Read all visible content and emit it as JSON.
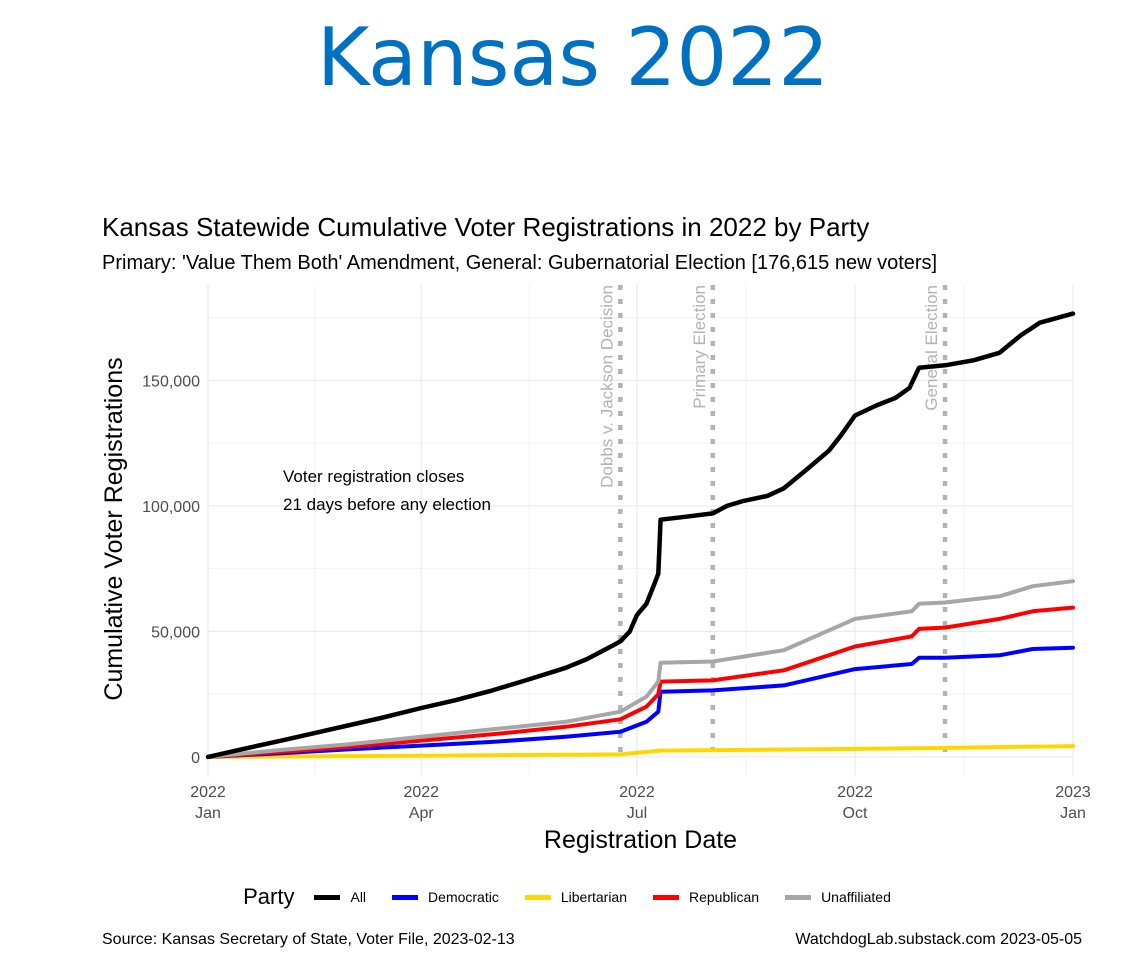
{
  "slide_title": "Kansas 2022",
  "source": "Source:  Kansas Secretary of State, Voter File, 2023-02-13",
  "credit": "WatchdogLab.substack.com 2023-05-05",
  "chart_data": {
    "type": "line",
    "title": "Kansas Statewide Cumulative Voter Registrations in 2022 by Party",
    "subtitle": "Primary: 'Value Them Both' Amendment, General: Gubernatorial Election [176,615 new voters]",
    "xlabel": "Registration Date",
    "ylabel": "Cumulative Voter Registrations",
    "xlim": [
      "2022-01-01",
      "2023-01-01"
    ],
    "ylim": [
      -8000,
      188000
    ],
    "x_ticks": [
      {
        "date": "2022-01-01",
        "label": [
          "2022",
          "Jan"
        ]
      },
      {
        "date": "2022-04-01",
        "label": [
          "2022",
          "Apr"
        ]
      },
      {
        "date": "2022-07-01",
        "label": [
          "2022",
          "Jul"
        ]
      },
      {
        "date": "2022-10-01",
        "label": [
          "2022",
          "Oct"
        ]
      },
      {
        "date": "2023-01-01",
        "label": [
          "2023",
          "Jan"
        ]
      }
    ],
    "y_ticks": [
      {
        "value": 0,
        "label": "0"
      },
      {
        "value": 50000,
        "label": "50,000"
      },
      {
        "value": 100000,
        "label": "100,000"
      },
      {
        "value": 150000,
        "label": "150,000"
      }
    ],
    "grid": true,
    "legend": {
      "title": "Party",
      "position": "bottom"
    },
    "events": [
      {
        "date": "2022-06-24",
        "label": "Dobbs v. Jackson Decision"
      },
      {
        "date": "2022-08-02",
        "label": "Primary Election"
      },
      {
        "date": "2022-11-08",
        "label": "General Election"
      }
    ],
    "annotation": [
      "Voter registration closes",
      "21 days before any election"
    ],
    "series": [
      {
        "name": "All",
        "color": "#000000",
        "points": [
          [
            "2022-01-01",
            0
          ],
          [
            "2022-01-15",
            3000
          ],
          [
            "2022-02-01",
            6500
          ],
          [
            "2022-02-15",
            9500
          ],
          [
            "2022-03-01",
            12500
          ],
          [
            "2022-03-15",
            15500
          ],
          [
            "2022-04-01",
            19500
          ],
          [
            "2022-04-15",
            22500
          ],
          [
            "2022-05-01",
            26500
          ],
          [
            "2022-05-15",
            30500
          ],
          [
            "2022-06-01",
            35500
          ],
          [
            "2022-06-10",
            39000
          ],
          [
            "2022-06-20",
            44000
          ],
          [
            "2022-06-24",
            46000
          ],
          [
            "2022-06-28",
            50000
          ],
          [
            "2022-07-01",
            56500
          ],
          [
            "2022-07-05",
            61000
          ],
          [
            "2022-07-08",
            68000
          ],
          [
            "2022-07-10",
            73000
          ],
          [
            "2022-07-11",
            94500
          ],
          [
            "2022-07-20",
            95500
          ],
          [
            "2022-08-02",
            97000
          ],
          [
            "2022-08-08",
            100000
          ],
          [
            "2022-08-15",
            102000
          ],
          [
            "2022-08-25",
            104000
          ],
          [
            "2022-09-01",
            107000
          ],
          [
            "2022-09-10",
            114000
          ],
          [
            "2022-09-20",
            122000
          ],
          [
            "2022-09-25",
            128000
          ],
          [
            "2022-10-01",
            136000
          ],
          [
            "2022-10-10",
            140000
          ],
          [
            "2022-10-18",
            143000
          ],
          [
            "2022-10-24",
            147000
          ],
          [
            "2022-10-28",
            155000
          ],
          [
            "2022-11-08",
            156000
          ],
          [
            "2022-11-20",
            158000
          ],
          [
            "2022-12-01",
            161000
          ],
          [
            "2022-12-10",
            168000
          ],
          [
            "2022-12-18",
            173000
          ],
          [
            "2023-01-01",
            176615
          ]
        ]
      },
      {
        "name": "Democratic",
        "color": "#0000ff",
        "points": [
          [
            "2022-01-01",
            0
          ],
          [
            "2022-02-01",
            1500
          ],
          [
            "2022-03-01",
            3000
          ],
          [
            "2022-04-01",
            4500
          ],
          [
            "2022-05-01",
            6000
          ],
          [
            "2022-06-01",
            8000
          ],
          [
            "2022-06-24",
            10000
          ],
          [
            "2022-07-05",
            14000
          ],
          [
            "2022-07-10",
            18000
          ],
          [
            "2022-07-11",
            26000
          ],
          [
            "2022-08-02",
            26500
          ],
          [
            "2022-09-01",
            28500
          ],
          [
            "2022-10-01",
            35000
          ],
          [
            "2022-10-25",
            37000
          ],
          [
            "2022-10-28",
            39500
          ],
          [
            "2022-11-08",
            39500
          ],
          [
            "2022-12-01",
            40500
          ],
          [
            "2022-12-15",
            43000
          ],
          [
            "2023-01-01",
            43500
          ]
        ]
      },
      {
        "name": "Libertarian",
        "color": "#ffd700",
        "points": [
          [
            "2022-01-01",
            0
          ],
          [
            "2022-04-01",
            500
          ],
          [
            "2022-06-24",
            1000
          ],
          [
            "2022-07-11",
            2500
          ],
          [
            "2022-10-01",
            3200
          ],
          [
            "2022-11-08",
            3600
          ],
          [
            "2023-01-01",
            4300
          ]
        ]
      },
      {
        "name": "Republican",
        "color": "#ff0000",
        "points": [
          [
            "2022-01-01",
            0
          ],
          [
            "2022-02-01",
            2000
          ],
          [
            "2022-03-01",
            4000
          ],
          [
            "2022-04-01",
            6500
          ],
          [
            "2022-05-01",
            9000
          ],
          [
            "2022-06-01",
            12000
          ],
          [
            "2022-06-24",
            15000
          ],
          [
            "2022-07-05",
            20000
          ],
          [
            "2022-07-10",
            25000
          ],
          [
            "2022-07-11",
            30000
          ],
          [
            "2022-08-02",
            30500
          ],
          [
            "2022-09-01",
            34500
          ],
          [
            "2022-10-01",
            44000
          ],
          [
            "2022-10-25",
            48000
          ],
          [
            "2022-10-28",
            51000
          ],
          [
            "2022-11-08",
            51500
          ],
          [
            "2022-12-01",
            55000
          ],
          [
            "2022-12-15",
            58000
          ],
          [
            "2023-01-01",
            59500
          ]
        ]
      },
      {
        "name": "Unaffiliated",
        "color": "#a6a6a6",
        "points": [
          [
            "2022-01-01",
            0
          ],
          [
            "2022-02-01",
            2800
          ],
          [
            "2022-03-01",
            5000
          ],
          [
            "2022-04-01",
            8000
          ],
          [
            "2022-05-01",
            11000
          ],
          [
            "2022-06-01",
            14000
          ],
          [
            "2022-06-24",
            18000
          ],
          [
            "2022-07-05",
            24000
          ],
          [
            "2022-07-10",
            30000
          ],
          [
            "2022-07-11",
            37500
          ],
          [
            "2022-08-02",
            38000
          ],
          [
            "2022-09-01",
            42500
          ],
          [
            "2022-10-01",
            55000
          ],
          [
            "2022-10-25",
            58000
          ],
          [
            "2022-10-28",
            61000
          ],
          [
            "2022-11-08",
            61500
          ],
          [
            "2022-12-01",
            64000
          ],
          [
            "2022-12-15",
            68000
          ],
          [
            "2023-01-01",
            70000
          ]
        ]
      }
    ]
  }
}
